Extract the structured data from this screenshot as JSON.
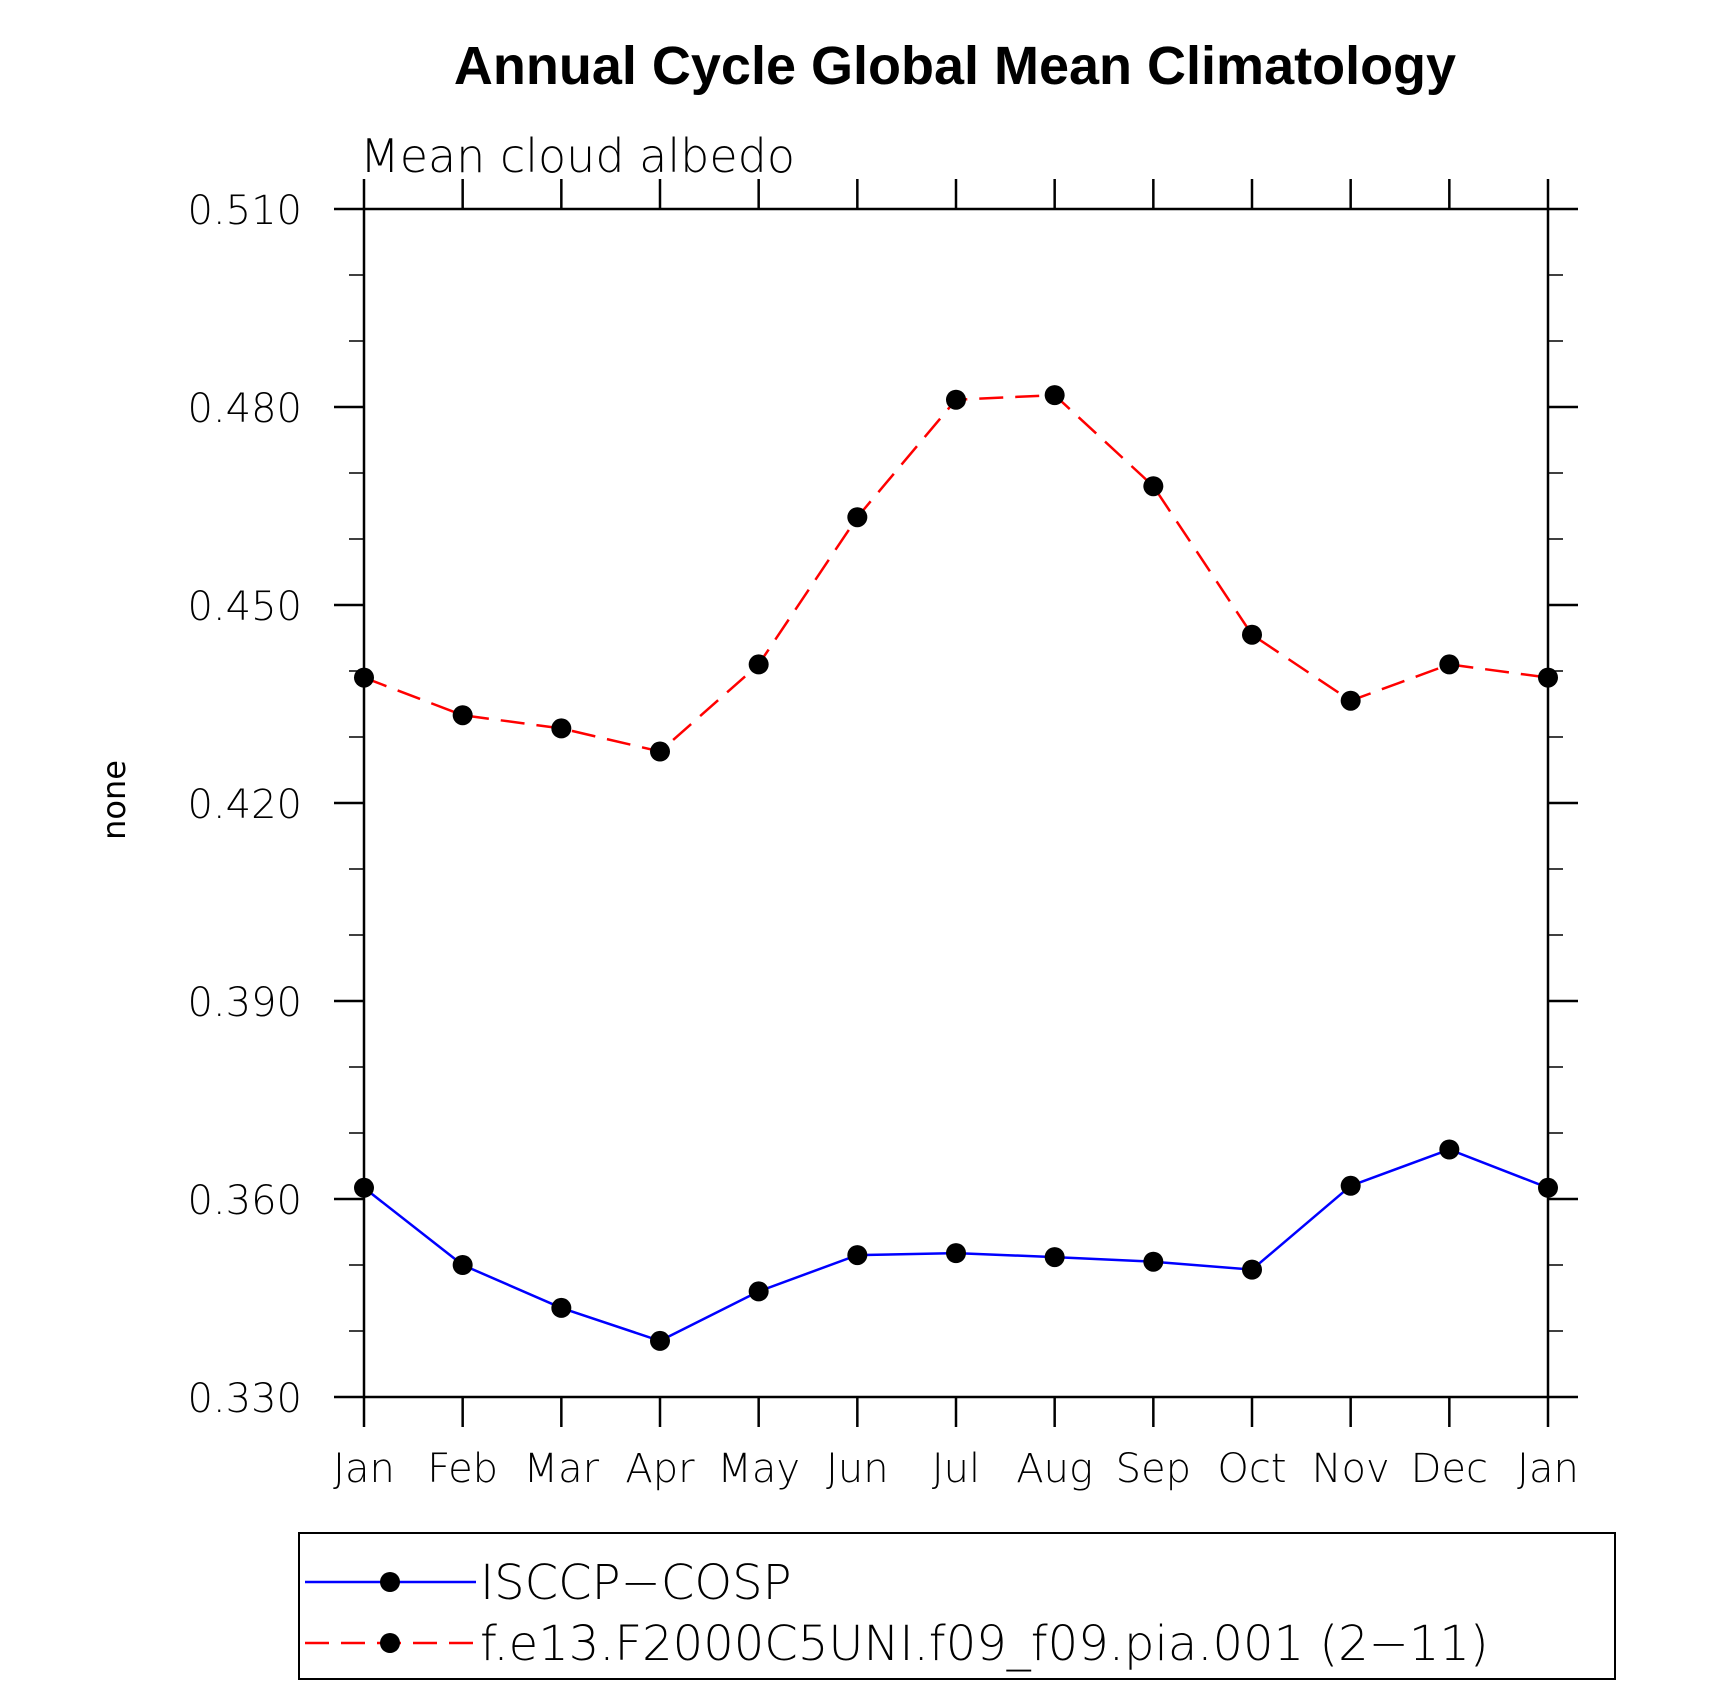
{
  "chart_data": {
    "type": "line",
    "title": "Annual Cycle Global Mean Climatology",
    "subtitle": "Mean cloud albedo",
    "xlabel": "",
    "ylabel": "none",
    "categories": [
      "Jan",
      "Feb",
      "Mar",
      "Apr",
      "May",
      "Jun",
      "Jul",
      "Aug",
      "Sep",
      "Oct",
      "Nov",
      "Dec",
      "Jan"
    ],
    "ylim": [
      0.33,
      0.51
    ],
    "yticks": [
      0.33,
      0.36,
      0.39,
      0.42,
      0.45,
      0.48,
      0.51
    ],
    "ytick_labels": [
      "0.330",
      "0.360",
      "0.390",
      "0.420",
      "0.450",
      "0.480",
      "0.510"
    ],
    "yminor_step": 0.01,
    "series": [
      {
        "name": "ISCCP−COSP",
        "color": "#0000ff",
        "dash": "solid",
        "marker": "circle",
        "values": [
          0.3617,
          0.35,
          0.3435,
          0.3385,
          0.346,
          0.3515,
          0.3518,
          0.3512,
          0.3505,
          0.3493,
          0.362,
          0.3675,
          0.3617
        ]
      },
      {
        "name": "f.e13.F2000C5UNI.f09_f09.pia.001 (2−11)",
        "color": "#ff0000",
        "dash": "dashed",
        "marker": "circle",
        "values": [
          0.439,
          0.4333,
          0.4313,
          0.4278,
          0.441,
          0.4633,
          0.4811,
          0.4818,
          0.468,
          0.4455,
          0.4355,
          0.441,
          0.439
        ]
      }
    ],
    "legend_position": "bottom"
  }
}
